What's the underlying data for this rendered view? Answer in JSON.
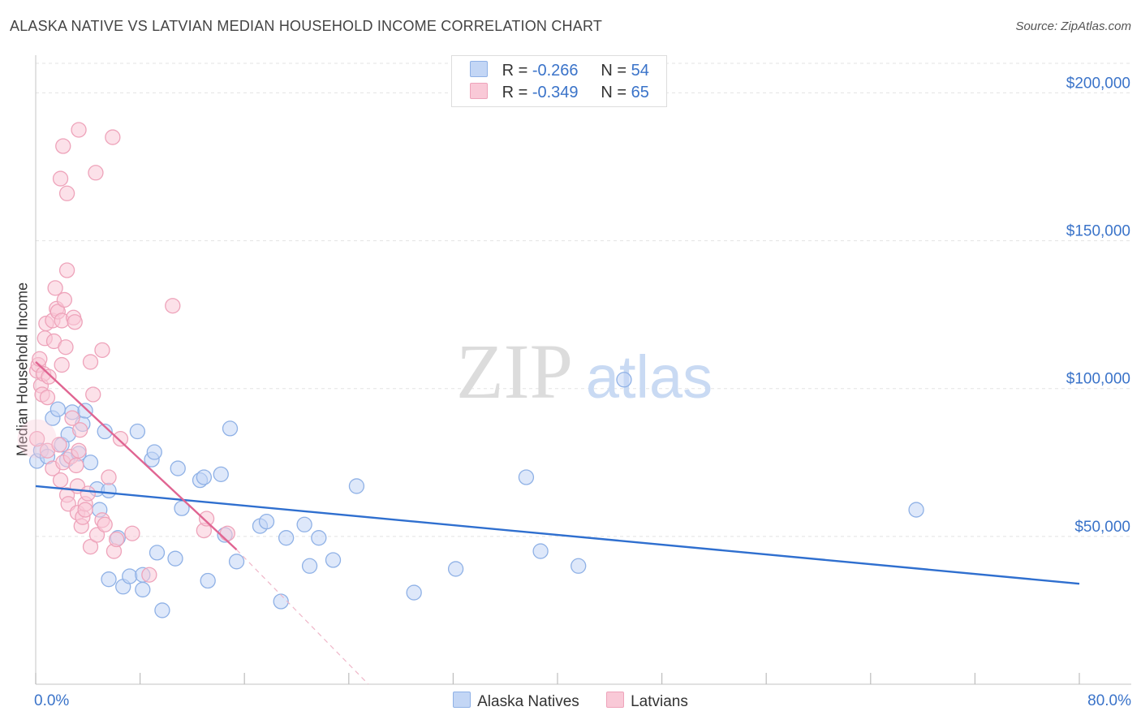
{
  "title": "ALASKA NATIVE VS LATVIAN MEDIAN HOUSEHOLD INCOME CORRELATION CHART",
  "source": "Source: ZipAtlas.com",
  "watermark": {
    "zip": "ZIP",
    "atlas": "atlas"
  },
  "legend": {
    "r_label": "R =",
    "n_label": "N =",
    "rows": [
      {
        "r": "-0.266",
        "n": "54",
        "color": "#8fb1e6"
      },
      {
        "r": "-0.349",
        "n": "65",
        "color": "#eea3ba"
      }
    ]
  },
  "chart_data": {
    "type": "scatter",
    "title": "ALASKA NATIVE VS LATVIAN MEDIAN HOUSEHOLD INCOME CORRELATION CHART",
    "xlabel": "",
    "ylabel": "Median Household Income",
    "xlim": [
      0,
      80
    ],
    "ylim": [
      0,
      210000
    ],
    "x_tick_labels": [
      "0.0%",
      "80.0%"
    ],
    "y_ticks": [
      {
        "value": 50000,
        "label": "$50,000"
      },
      {
        "value": 100000,
        "label": "$100,000"
      },
      {
        "value": 150000,
        "label": "$150,000"
      },
      {
        "value": 200000,
        "label": "$200,000"
      }
    ],
    "grid": true,
    "legend_position": "top-center",
    "series": [
      {
        "name": "Alaska Natives",
        "color": "#8fb1e6",
        "fill": "#c3d6f5",
        "trend": {
          "x": [
            0,
            80
          ],
          "y": [
            67000,
            34000
          ],
          "color": "#2f6fcf"
        },
        "points": [
          [
            0.1,
            75500
          ],
          [
            0.4,
            79000
          ],
          [
            0.9,
            77000
          ],
          [
            1.3,
            90000
          ],
          [
            1.7,
            93000
          ],
          [
            2.0,
            81000
          ],
          [
            2.5,
            84500
          ],
          [
            2.4,
            76000
          ],
          [
            2.8,
            92000
          ],
          [
            3.3,
            78000
          ],
          [
            3.6,
            88000
          ],
          [
            3.8,
            92500
          ],
          [
            4.2,
            75000
          ],
          [
            4.7,
            66000
          ],
          [
            4.9,
            59000
          ],
          [
            5.3,
            85500
          ],
          [
            5.6,
            65500
          ],
          [
            5.6,
            35500
          ],
          [
            6.3,
            49500
          ],
          [
            6.7,
            33000
          ],
          [
            7.2,
            36500
          ],
          [
            7.8,
            85500
          ],
          [
            8.2,
            37000
          ],
          [
            8.2,
            32000
          ],
          [
            8.9,
            76000
          ],
          [
            9.1,
            78500
          ],
          [
            9.3,
            44500
          ],
          [
            9.7,
            25000
          ],
          [
            10.7,
            42500
          ],
          [
            10.9,
            73000
          ],
          [
            11.2,
            59500
          ],
          [
            12.6,
            69000
          ],
          [
            12.9,
            70000
          ],
          [
            13.2,
            35000
          ],
          [
            14.2,
            71000
          ],
          [
            14.5,
            50500
          ],
          [
            14.9,
            86500
          ],
          [
            15.4,
            41500
          ],
          [
            17.2,
            53500
          ],
          [
            17.7,
            55000
          ],
          [
            18.8,
            28000
          ],
          [
            19.2,
            49500
          ],
          [
            20.6,
            54000
          ],
          [
            21.0,
            40000
          ],
          [
            21.7,
            49500
          ],
          [
            22.8,
            42000
          ],
          [
            24.6,
            67000
          ],
          [
            29.0,
            31000
          ],
          [
            32.2,
            39000
          ],
          [
            37.6,
            70000
          ],
          [
            38.7,
            45000
          ],
          [
            41.6,
            40000
          ],
          [
            45.1,
            103000
          ],
          [
            67.5,
            59000
          ]
        ]
      },
      {
        "name": "Latvians",
        "color": "#eea3ba",
        "fill": "#f9c9d7",
        "trend": {
          "x": [
            0,
            15.4
          ],
          "y": [
            109000,
            45500
          ],
          "color": "#e06592",
          "extension": {
            "x": [
              15.4,
              25.5
            ],
            "y": [
              45500,
              0
            ]
          }
        },
        "points": [
          [
            0.1,
            83000
          ],
          [
            0.1,
            106000
          ],
          [
            0.2,
            108000
          ],
          [
            0.3,
            110000
          ],
          [
            0.4,
            101000
          ],
          [
            0.5,
            98000
          ],
          [
            0.6,
            105000
          ],
          [
            0.7,
            117000
          ],
          [
            0.8,
            122000
          ],
          [
            0.9,
            97000
          ],
          [
            0.9,
            79000
          ],
          [
            1.0,
            104000
          ],
          [
            1.3,
            123000
          ],
          [
            1.3,
            73000
          ],
          [
            1.4,
            116000
          ],
          [
            1.5,
            134000
          ],
          [
            1.6,
            127000
          ],
          [
            1.7,
            126000
          ],
          [
            1.8,
            81000
          ],
          [
            1.9,
            69000
          ],
          [
            1.9,
            171000
          ],
          [
            2.0,
            108000
          ],
          [
            2.0,
            123000
          ],
          [
            2.1,
            182000
          ],
          [
            2.1,
            75000
          ],
          [
            2.2,
            130000
          ],
          [
            2.3,
            114000
          ],
          [
            2.4,
            140000
          ],
          [
            2.4,
            166000
          ],
          [
            2.4,
            64000
          ],
          [
            2.5,
            61000
          ],
          [
            2.7,
            77000
          ],
          [
            2.8,
            90000
          ],
          [
            2.9,
            124000
          ],
          [
            3.0,
            122500
          ],
          [
            3.1,
            74000
          ],
          [
            3.2,
            58000
          ],
          [
            3.2,
            67000
          ],
          [
            3.3,
            79000
          ],
          [
            3.3,
            187500
          ],
          [
            3.4,
            86000
          ],
          [
            3.5,
            53500
          ],
          [
            3.6,
            56500
          ],
          [
            3.8,
            61000
          ],
          [
            3.8,
            59000
          ],
          [
            4.0,
            64500
          ],
          [
            4.2,
            109000
          ],
          [
            4.2,
            46500
          ],
          [
            4.4,
            98000
          ],
          [
            4.6,
            173000
          ],
          [
            4.7,
            50500
          ],
          [
            5.1,
            113000
          ],
          [
            5.1,
            55500
          ],
          [
            5.3,
            54000
          ],
          [
            5.6,
            70000
          ],
          [
            5.9,
            185000
          ],
          [
            6.0,
            45000
          ],
          [
            6.2,
            49000
          ],
          [
            6.5,
            83000
          ],
          [
            7.4,
            51000
          ],
          [
            8.7,
            37000
          ],
          [
            10.5,
            128000
          ],
          [
            12.9,
            52000
          ],
          [
            13.1,
            56000
          ],
          [
            14.7,
            51000
          ]
        ]
      }
    ]
  },
  "bottom_legend": [
    {
      "label": "Alaska Natives"
    },
    {
      "label": "Latvians"
    }
  ]
}
